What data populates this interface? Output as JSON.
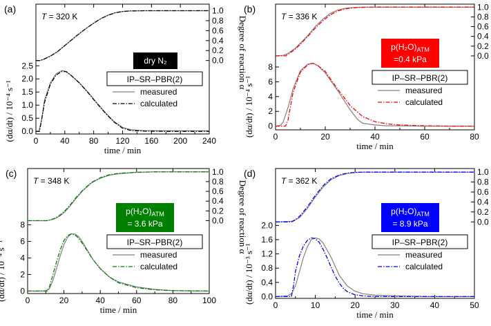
{
  "colors": {
    "axis": "#000000",
    "measured": "#808080",
    "calculated_a": "#000000",
    "calculated_b": "#ff0000",
    "calculated_c": "#008000",
    "calculated_d": "#0000ff"
  },
  "chart_data": [
    {
      "type": "line",
      "panel_label": "(a)",
      "temperature": "T = 320 K",
      "condition": {
        "lines": [
          "dry N₂"
        ],
        "bg": "#000000"
      },
      "model": "IP–SR–PBR(2)",
      "xlabel": "time / min",
      "ylabel": "(dα/dt) / 10⁻⁴ s⁻¹",
      "y2label": "Degree of reaction α",
      "xlim": [
        0,
        240
      ],
      "ylim": [
        -0.1,
        4.85
      ],
      "xticks": [
        0,
        40,
        80,
        120,
        160,
        200,
        240
      ],
      "xtick_labels": [
        "0",
        "40",
        "80",
        "120",
        "160",
        "200",
        "240"
      ],
      "yticks": [
        0,
        0.5,
        1.0,
        1.5,
        2.0,
        2.5
      ],
      "ytick_labels": [
        "0.0",
        "0.5",
        "1.0",
        "1.5",
        "2.0",
        "2.5"
      ],
      "alpha_offset": 2.7,
      "alpha_scale": 1.9,
      "alpha_ticks": [
        0,
        0.2,
        0.4,
        0.6,
        0.8,
        1.0
      ],
      "alpha_tick_labels": [
        "0.0",
        "0.2",
        "0.4",
        "0.6",
        "0.8",
        "1.0"
      ],
      "series": [
        {
          "name": "measured",
          "rate": {
            "x": [
              0,
              4,
              8,
              12,
              20,
              28,
              36,
              40,
              48,
              60,
              72,
              84,
              96,
              108,
              120,
              132,
              150,
              180,
              210,
              240
            ],
            "y": [
              0,
              0,
              0.45,
              1.2,
              1.85,
              2.2,
              2.32,
              2.3,
              2.15,
              1.85,
              1.5,
              1.1,
              0.72,
              0.38,
              0.15,
              0.06,
              0.03,
              0.02,
              0.02,
              0.02
            ]
          },
          "alpha": {
            "x": [
              0,
              5,
              10,
              20,
              30,
              40,
              50,
              60,
              70,
              80,
              90,
              100,
              110,
              120,
              130,
              150,
              180,
              240
            ],
            "y": [
              0,
              0,
              0.02,
              0.09,
              0.18,
              0.3,
              0.42,
              0.54,
              0.65,
              0.75,
              0.84,
              0.91,
              0.96,
              0.985,
              0.995,
              1.0,
              1.0,
              1.0
            ]
          }
        },
        {
          "name": "calculated",
          "rate": {
            "x": [
              0,
              5,
              7,
              12,
              20,
              28,
              36,
              42,
              48,
              60,
              72,
              84,
              96,
              108,
              120,
              132,
              150,
              180,
              210,
              240
            ],
            "y": [
              0,
              0,
              0.3,
              1.1,
              1.8,
              2.15,
              2.28,
              2.28,
              2.15,
              1.85,
              1.48,
              1.08,
              0.7,
              0.36,
              0.12,
              0.03,
              0.01,
              0.0,
              0.0,
              0.0
            ]
          },
          "alpha": {
            "x": [
              0,
              5,
              10,
              20,
              30,
              40,
              50,
              60,
              70,
              80,
              90,
              100,
              110,
              120,
              130,
              150,
              180,
              240
            ],
            "y": [
              0,
              0,
              0.02,
              0.09,
              0.18,
              0.3,
              0.42,
              0.54,
              0.65,
              0.75,
              0.84,
              0.91,
              0.96,
              0.985,
              0.995,
              1.0,
              1.0,
              1.0
            ]
          }
        }
      ]
    },
    {
      "type": "line",
      "panel_label": "(b)",
      "temperature": "T = 336 K",
      "condition": {
        "lines": [
          "p(H₂O)ATM",
          "=0.4 kPa"
        ],
        "bg": "#ff0000"
      },
      "model": "IP–SR–PBR(2)",
      "xlabel": "time / min",
      "ylabel": "(dα/dt) / 10⁻⁴ s⁻¹",
      "y2label": "Degree of reaction α",
      "xlim": [
        0,
        80
      ],
      "ylim": [
        -0.5,
        16.5
      ],
      "xticks": [
        0,
        20,
        40,
        60,
        80
      ],
      "xtick_labels": [
        "0",
        "20",
        "40",
        "60",
        "80"
      ],
      "yticks": [
        0,
        2,
        4,
        6,
        8
      ],
      "ytick_labels": [
        "0",
        "2",
        "4",
        "6",
        "8"
      ],
      "alpha_offset": 9.5,
      "alpha_scale": 6.6,
      "alpha_ticks": [
        0,
        0.2,
        0.4,
        0.6,
        0.8,
        1.0
      ],
      "alpha_tick_labels": [
        "0.0",
        "0.2",
        "0.4",
        "0.6",
        "0.8",
        "1.0"
      ],
      "series": [
        {
          "name": "measured",
          "rate": {
            "x": [
              0,
              2,
              3,
              5,
              7,
              10,
              13,
              15,
              17,
              20,
              25,
              30,
              33,
              35,
              40,
              45,
              50,
              60,
              70,
              80
            ],
            "y": [
              0,
              0.1,
              0.5,
              2.5,
              5.0,
              7.5,
              8.4,
              8.5,
              8.2,
              7.2,
              4.8,
              2.2,
              0.9,
              0.4,
              0.15,
              0.05,
              0.05,
              0.0,
              0.0,
              0.0
            ]
          },
          "alpha": {
            "x": [
              0,
              3,
              5,
              8,
              10,
              13,
              16,
              19,
              22,
              25,
              28,
              31,
              35,
              40,
              50,
              80
            ],
            "y": [
              0,
              0.01,
              0.05,
              0.16,
              0.26,
              0.42,
              0.6,
              0.75,
              0.87,
              0.94,
              0.975,
              0.99,
              1.0,
              1.0,
              1.0,
              1.0
            ]
          }
        },
        {
          "name": "calculated",
          "rate": {
            "x": [
              0,
              4,
              5,
              7,
              10,
              13,
              15,
              17,
              20,
              25,
              30,
              35,
              40,
              45,
              50,
              60,
              70,
              80
            ],
            "y": [
              0,
              0,
              0.8,
              4.5,
              7.3,
              8.3,
              8.5,
              8.2,
              7.4,
              5.0,
              2.8,
              1.3,
              0.6,
              0.3,
              0.15,
              0.05,
              0.0,
              0.0
            ]
          },
          "alpha": {
            "x": [
              0,
              4,
              5,
              8,
              10,
              13,
              16,
              19,
              22,
              25,
              28,
              31,
              35,
              40,
              50,
              80
            ],
            "y": [
              0,
              0,
              0.03,
              0.14,
              0.24,
              0.4,
              0.57,
              0.72,
              0.84,
              0.92,
              0.96,
              0.985,
              0.995,
              1.0,
              1.0,
              1.0
            ]
          }
        }
      ]
    },
    {
      "type": "line",
      "panel_label": "(c)",
      "temperature": "T = 348 K",
      "condition": {
        "lines": [
          "p(H₂O)ATM",
          "= 3.6 kPa"
        ],
        "bg": "#008000"
      },
      "model": "IP–SR–PBR(2)",
      "xlabel": "time / min",
      "ylabel": "(dα/dt) / 10⁻⁴ s⁻¹",
      "y2label": "Degree of reaction α",
      "xlim": [
        0,
        100
      ],
      "ylim": [
        -0.3,
        14.8
      ],
      "xticks": [
        0,
        20,
        40,
        60,
        80,
        100
      ],
      "xtick_labels": [
        "0",
        "20",
        "40",
        "60",
        "80",
        "100"
      ],
      "yticks": [
        0,
        2,
        4,
        6,
        8
      ],
      "ytick_labels": [
        "0",
        "2",
        "4",
        "6",
        "8"
      ],
      "alpha_offset": 8.5,
      "alpha_scale": 5.9,
      "alpha_ticks": [
        0,
        0.2,
        0.4,
        0.6,
        0.8,
        1.0
      ],
      "alpha_tick_labels": [
        "0.0",
        "0.2",
        "0.4",
        "0.6",
        "0.8",
        "1.0"
      ],
      "series": [
        {
          "name": "measured",
          "rate": {
            "x": [
              0,
              8,
              10,
              12,
              14,
              16,
              18,
              20,
              22,
              24,
              26,
              28,
              30,
              33,
              36,
              40,
              45,
              50,
              60,
              70,
              80,
              100
            ],
            "y": [
              0,
              0,
              0.05,
              0.3,
              1.3,
              2.8,
              4.3,
              5.6,
              6.5,
              6.9,
              6.9,
              6.6,
              6.0,
              4.9,
              3.8,
              2.7,
              1.7,
              1.1,
              0.5,
              0.2,
              0.05,
              0.0
            ]
          },
          "alpha": {
            "x": [
              0,
              10,
              12,
              15,
              18,
              21,
              24,
              27,
              30,
              35,
              40,
              45,
              50,
              60,
              70,
              80,
              100
            ],
            "y": [
              0,
              0,
              0.01,
              0.04,
              0.1,
              0.2,
              0.33,
              0.47,
              0.6,
              0.77,
              0.87,
              0.93,
              0.96,
              0.99,
              1.0,
              1.0,
              1.0
            ]
          }
        },
        {
          "name": "calculated",
          "rate": {
            "x": [
              0,
              11,
              12,
              14,
              16,
              18,
              20,
              22,
              24,
              26,
              28,
              30,
              33,
              36,
              40,
              45,
              50,
              60,
              70,
              80,
              100
            ],
            "y": [
              0,
              0,
              0.5,
              2.0,
              3.6,
              5.0,
              6.1,
              6.7,
              6.9,
              6.8,
              6.4,
              5.8,
              4.8,
              3.8,
              2.7,
              1.7,
              1.0,
              0.4,
              0.15,
              0.05,
              0.0
            ]
          },
          "alpha": {
            "x": [
              0,
              11,
              12,
              15,
              18,
              21,
              24,
              27,
              30,
              35,
              40,
              45,
              50,
              60,
              70,
              80,
              100
            ],
            "y": [
              0,
              0,
              0.01,
              0.05,
              0.12,
              0.22,
              0.35,
              0.49,
              0.61,
              0.78,
              0.88,
              0.94,
              0.97,
              0.99,
              1.0,
              1.0,
              1.0
            ]
          }
        }
      ]
    },
    {
      "type": "line",
      "panel_label": "(d)",
      "temperature": "T = 362 K",
      "condition": {
        "lines": [
          "p(H₂O)ATM",
          "= 8.9 kPa"
        ],
        "bg": "#0000ff"
      },
      "model": "IP–SR–PBR(2)",
      "xlabel": "time / min",
      "ylabel": "(dα/dt) / 10⁻³ s⁻¹",
      "y2label": "Degree of reaction α",
      "xlim": [
        0,
        50
      ],
      "ylim": [
        -0.05,
        3.6
      ],
      "xticks": [
        0,
        10,
        20,
        30,
        40,
        50
      ],
      "xtick_labels": [
        "0",
        "10",
        "20",
        "30",
        "40",
        "50"
      ],
      "yticks": [
        0,
        0.4,
        0.8,
        1.2,
        1.6,
        2.0
      ],
      "ytick_labels": [
        "0.0",
        "0.4",
        "0.8",
        "1.2",
        "1.6",
        "2.0"
      ],
      "alpha_offset": 2.1,
      "alpha_scale": 1.4,
      "alpha_ticks": [
        0,
        0.2,
        0.4,
        0.6,
        0.8,
        1.0
      ],
      "alpha_tick_labels": [
        "0.0",
        "0.2",
        "0.4",
        "0.6",
        "0.8",
        "1.0"
      ],
      "series": [
        {
          "name": "measured",
          "rate": {
            "x": [
              0,
              3,
              4,
              5,
              6,
              7,
              8,
              9,
              10,
              11,
              12,
              13,
              14,
              15,
              16,
              18,
              20,
              22,
              25,
              30,
              35,
              40,
              50
            ],
            "y": [
              0,
              0.02,
              0.08,
              0.3,
              0.7,
              1.1,
              1.4,
              1.6,
              1.65,
              1.62,
              1.5,
              1.3,
              1.1,
              0.85,
              0.6,
              0.3,
              0.15,
              0.08,
              0.04,
              0.02,
              0.01,
              0.0,
              0.0
            ]
          },
          "alpha": {
            "x": [
              0,
              4,
              6,
              8,
              10,
              12,
              14,
              16,
              18,
              20,
              22,
              25,
              30,
              35,
              50
            ],
            "y": [
              0,
              0.01,
              0.08,
              0.27,
              0.5,
              0.7,
              0.85,
              0.93,
              0.97,
              0.99,
              1.0,
              1.0,
              1.0,
              1.0,
              1.0
            ]
          }
        },
        {
          "name": "calculated",
          "rate": {
            "x": [
              0,
              4,
              4.5,
              5,
              6,
              7,
              8,
              9,
              10,
              11,
              12,
              13,
              14,
              15,
              16,
              17,
              18,
              20,
              22,
              25,
              30,
              35,
              40,
              50
            ],
            "y": [
              0,
              0,
              0.3,
              0.7,
              1.15,
              1.42,
              1.58,
              1.65,
              1.63,
              1.52,
              1.32,
              1.08,
              0.82,
              0.58,
              0.38,
              0.24,
              0.14,
              0.05,
              0.02,
              0.0,
              0.0,
              0.0,
              0.0,
              0.0
            ]
          },
          "alpha": {
            "x": [
              0,
              4,
              5,
              6,
              8,
              10,
              12,
              14,
              16,
              18,
              20,
              22,
              25,
              30,
              35,
              50
            ],
            "y": [
              0,
              0,
              0.04,
              0.11,
              0.3,
              0.53,
              0.73,
              0.87,
              0.94,
              0.98,
              0.995,
              1.0,
              1.0,
              1.0,
              1.0,
              1.0
            ]
          }
        }
      ]
    }
  ]
}
